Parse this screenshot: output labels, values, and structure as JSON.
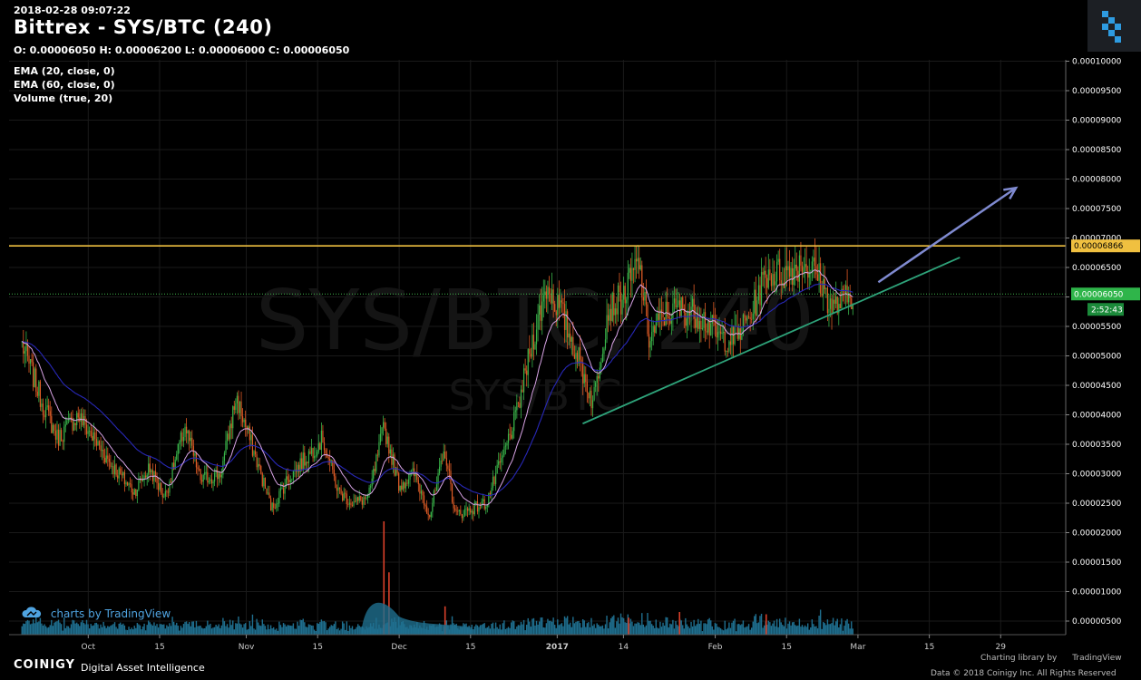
{
  "header": {
    "timestamp": "2018-02-28 09:07:22",
    "title": "Bittrex - SYS/BTC (240)",
    "ohlc": "O: 0.00006050 H: 0.00006200 L: 0.00006000 C: 0.00006050",
    "studies": [
      "EMA (20, close, 0)",
      "EMA (60, close, 0)",
      "Volume (true, 20)"
    ]
  },
  "watermark": {
    "pair": "SYS/BTC",
    "interval": "240",
    "sub": "SYS/BTC"
  },
  "branding": {
    "tradingview_label": "charts by TradingView",
    "coinigy_name": "COINIGY",
    "coinigy_tagline": "Digital Asset Intelligence",
    "charting_library": "Charting library by",
    "tradingview_small": "TradingView",
    "copyright": "Data © 2018 Coinigy Inc. All Rights Reserved"
  },
  "colors": {
    "up": "#39b54a",
    "down": "#e05c26",
    "ema20": "#d9a4e6",
    "ema60": "#2828b8",
    "volume": "#1f6f8f",
    "resistance": "#f0c040",
    "trendline": "#2ea37a",
    "arrow": "#7f8ad0",
    "price_label": "#2fb54a",
    "countdown_label": "#1b8a3a"
  },
  "chart_data": {
    "type": "candlestick",
    "exchange": "Bittrex",
    "pair": "SYS/BTC",
    "interval": "240",
    "y_axis": {
      "min": 4e-06,
      "max": 0.0001,
      "ticks": [
        "0.00010000",
        "0.00009500",
        "0.00009000",
        "0.00008500",
        "0.00008000",
        "0.00007500",
        "0.00007000",
        "0.00006500",
        "0.00006000",
        "0.00005500",
        "0.00005000",
        "0.00004500",
        "0.00004000",
        "0.00003500",
        "0.00003000",
        "0.00002500",
        "0.00002000",
        "0.00001500",
        "0.00001000",
        "0.00000500"
      ],
      "tick_values": [
        0.0001,
        9.5e-05,
        9e-05,
        8.5e-05,
        8e-05,
        7.5e-05,
        7e-05,
        6.5e-05,
        6e-05,
        5.5e-05,
        5e-05,
        4.5e-05,
        4e-05,
        3.5e-05,
        3e-05,
        2.5e-05,
        2e-05,
        1.5e-05,
        1e-05,
        5e-06
      ]
    },
    "x_axis": {
      "ticks": [
        {
          "label": "Oct",
          "date": "2016-10-01"
        },
        {
          "label": "15",
          "date": "2016-10-15"
        },
        {
          "label": "Nov",
          "date": "2016-11-01"
        },
        {
          "label": "15",
          "date": "2016-11-15"
        },
        {
          "label": "Dec",
          "date": "2016-12-01"
        },
        {
          "label": "15",
          "date": "2016-12-15"
        },
        {
          "label": "2017",
          "date": "2017-01-01"
        },
        {
          "label": "14",
          "date": "2017-01-14"
        },
        {
          "label": "Feb",
          "date": "2017-02-01"
        },
        {
          "label": "15",
          "date": "2017-02-15"
        },
        {
          "label": "Mar",
          "date": "2017-03-01"
        },
        {
          "label": "15",
          "date": "2017-03-15"
        },
        {
          "label": "29",
          "date": "2017-03-29"
        }
      ]
    },
    "price_path": [
      {
        "date": "2016-09-18",
        "close": 5.2e-05
      },
      {
        "date": "2016-09-22",
        "close": 4.2e-05
      },
      {
        "date": "2016-09-25",
        "close": 3.6e-05
      },
      {
        "date": "2016-09-29",
        "close": 4e-05
      },
      {
        "date": "2016-10-02",
        "close": 3.6e-05
      },
      {
        "date": "2016-10-06",
        "close": 3.1e-05
      },
      {
        "date": "2016-10-10",
        "close": 2.7e-05
      },
      {
        "date": "2016-10-13",
        "close": 3.1e-05
      },
      {
        "date": "2016-10-16",
        "close": 2.6e-05
      },
      {
        "date": "2016-10-20",
        "close": 3.8e-05
      },
      {
        "date": "2016-10-23",
        "close": 2.9e-05
      },
      {
        "date": "2016-10-27",
        "close": 3e-05
      },
      {
        "date": "2016-10-30",
        "close": 4.3e-05
      },
      {
        "date": "2016-11-02",
        "close": 3.5e-05
      },
      {
        "date": "2016-11-06",
        "close": 2.4e-05
      },
      {
        "date": "2016-11-09",
        "close": 2.9e-05
      },
      {
        "date": "2016-11-13",
        "close": 3.3e-05
      },
      {
        "date": "2016-11-16",
        "close": 3.6e-05
      },
      {
        "date": "2016-11-19",
        "close": 2.7e-05
      },
      {
        "date": "2016-11-22",
        "close": 2.5e-05
      },
      {
        "date": "2016-11-25",
        "close": 2.6e-05
      },
      {
        "date": "2016-11-28",
        "close": 3.8e-05
      },
      {
        "date": "2016-12-01",
        "close": 2.8e-05
      },
      {
        "date": "2016-12-04",
        "close": 3e-05
      },
      {
        "date": "2016-12-07",
        "close": 2.3e-05
      },
      {
        "date": "2016-12-10",
        "close": 3.4e-05
      },
      {
        "date": "2016-12-12",
        "close": 2.3e-05
      },
      {
        "date": "2016-12-15",
        "close": 2.4e-05
      },
      {
        "date": "2016-12-18",
        "close": 2.5e-05
      },
      {
        "date": "2016-12-21",
        "close": 3.2e-05
      },
      {
        "date": "2016-12-24",
        "close": 4e-05
      },
      {
        "date": "2016-12-27",
        "close": 5.2e-05
      },
      {
        "date": "2016-12-30",
        "close": 6.2e-05
      },
      {
        "date": "2017-01-02",
        "close": 5.7e-05
      },
      {
        "date": "2017-01-05",
        "close": 5e-05
      },
      {
        "date": "2017-01-08",
        "close": 4.2e-05
      },
      {
        "date": "2017-01-11",
        "close": 5.8e-05
      },
      {
        "date": "2017-01-14",
        "close": 6e-05
      },
      {
        "date": "2017-01-17",
        "close": 6.6e-05
      },
      {
        "date": "2017-01-19",
        "close": 5.3e-05
      },
      {
        "date": "2017-01-22",
        "close": 5.7e-05
      },
      {
        "date": "2017-01-25",
        "close": 5.8e-05
      },
      {
        "date": "2017-01-29",
        "close": 5.7e-05
      },
      {
        "date": "2017-02-02",
        "close": 5.3e-05
      },
      {
        "date": "2017-02-05",
        "close": 5.3e-05
      },
      {
        "date": "2017-02-08",
        "close": 5.7e-05
      },
      {
        "date": "2017-02-11",
        "close": 6.4e-05
      },
      {
        "date": "2017-02-15",
        "close": 6.4e-05
      },
      {
        "date": "2017-02-18",
        "close": 6.6e-05
      },
      {
        "date": "2017-02-21",
        "close": 6.4e-05
      },
      {
        "date": "2017-02-24",
        "close": 5.8e-05
      },
      {
        "date": "2017-02-28",
        "close": 6.05e-05
      }
    ],
    "last_price": "0.00006050",
    "countdown": "2:52:43",
    "resistance": {
      "value": 6.866e-05,
      "label": "0.00006866"
    },
    "trendline": {
      "from": {
        "date": "2017-01-06",
        "price": 3.85e-05
      },
      "to": {
        "date": "2017-03-21",
        "price": 6.67e-05
      }
    },
    "projection_arrow": {
      "from": {
        "date": "2017-03-05",
        "price": 6.25e-05
      },
      "to": {
        "date": "2017-04-01",
        "price": 7.85e-05
      }
    },
    "volume_spikes": [
      {
        "date": "2016-11-28",
        "relative": 1.0
      },
      {
        "date": "2016-11-29",
        "relative": 0.55
      },
      {
        "date": "2016-12-10",
        "relative": 0.25
      },
      {
        "date": "2017-01-15",
        "relative": 0.15
      },
      {
        "date": "2017-01-25",
        "relative": 0.2
      },
      {
        "date": "2017-02-11",
        "relative": 0.18
      }
    ]
  }
}
